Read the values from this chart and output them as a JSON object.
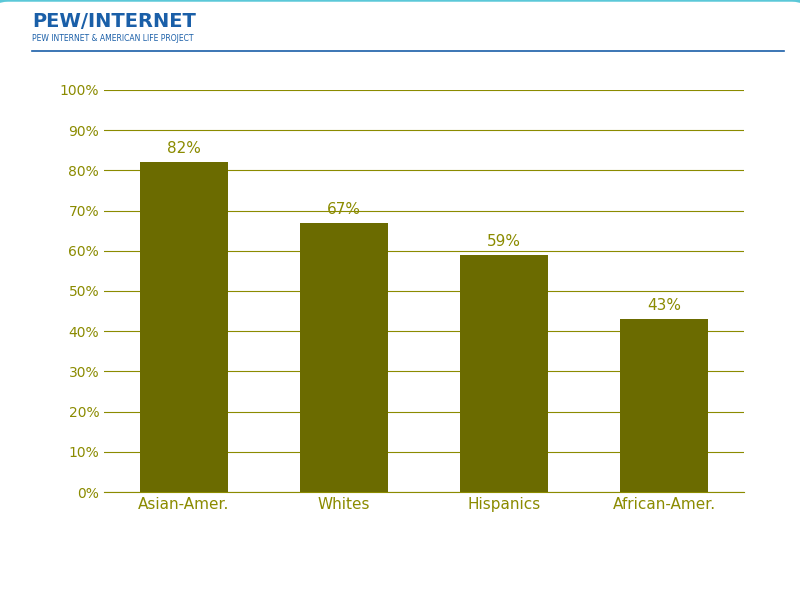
{
  "categories": [
    "Asian-Amer.",
    "Whites",
    "Hispanics",
    "African-Amer."
  ],
  "values": [
    82,
    67,
    59,
    43
  ],
  "labels": [
    "82%",
    "67%",
    "59%",
    "43%"
  ],
  "bar_color": "#6b6b00",
  "grid_color": "#8b8b00",
  "ytick_labels": [
    "0%",
    "10%",
    "20%",
    "30%",
    "40%",
    "50%",
    "60%",
    "70%",
    "80%",
    "90%",
    "100%"
  ],
  "ytick_values": [
    0,
    10,
    20,
    30,
    40,
    50,
    60,
    70,
    80,
    90,
    100
  ],
  "ylim": [
    0,
    100
  ],
  "background_color": "#ffffff",
  "border_color": "#5bc8d8",
  "pew_text_pew": "PEW/INTERNET",
  "pew_text_sub": "PEW INTERNET & AMERICAN LIFE PROJECT",
  "tick_label_color": "#8b8b00",
  "xlabel_color": "#8b8b00",
  "annotation_color": "#8b8b00",
  "bar_width": 0.55,
  "header_color": "#1a5fa8"
}
